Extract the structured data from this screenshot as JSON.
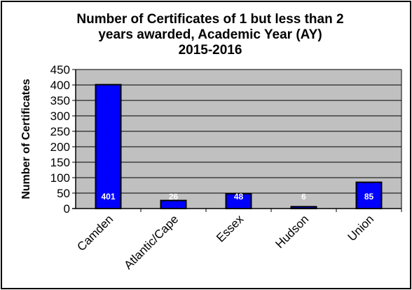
{
  "chart_data": {
    "type": "bar",
    "title": "Number of Certificates of 1 but less than 2 years awarded, Academic Year (AY) 2015-2016",
    "title_lines": [
      "Number of Certificates of 1 but less than 2",
      "years awarded, Academic Year (AY)",
      "2015-2016"
    ],
    "xlabel": "",
    "ylabel": "Number of Certificates",
    "categories": [
      "Camden",
      "Atlantic/Cape",
      "Essex",
      "Hudson",
      "Union"
    ],
    "values": [
      401,
      26,
      48,
      6,
      85
    ],
    "data_labels": [
      "401",
      "26",
      "48",
      "6",
      "85"
    ],
    "ylim": [
      0,
      450
    ],
    "yticks": [
      0,
      50,
      100,
      150,
      200,
      250,
      300,
      350,
      400,
      450
    ],
    "grid": true,
    "legend": "none",
    "colors": {
      "bar_fill": "#0000ff",
      "bar_edge": "#000000",
      "plot_background": "#c0c0c0",
      "data_label": "#ffffff"
    }
  }
}
